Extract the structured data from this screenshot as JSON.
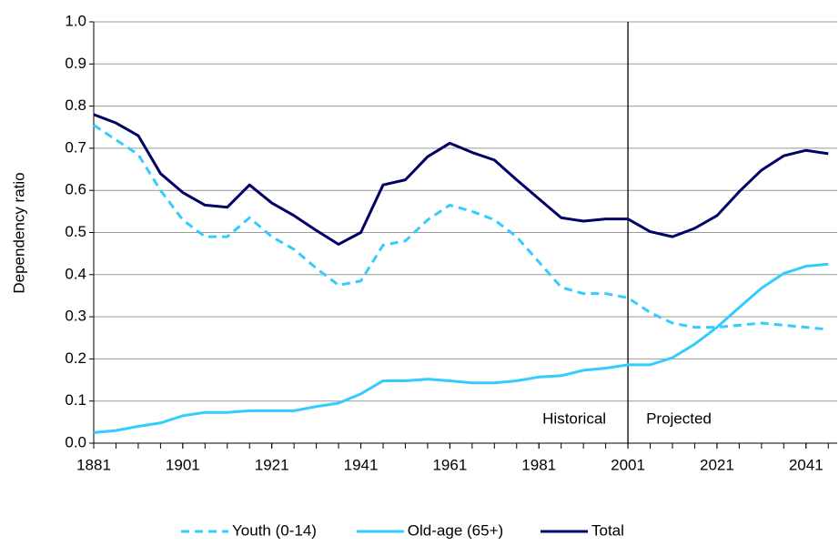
{
  "chart_data": {
    "type": "line",
    "y_label": "Dependency ratio",
    "x": [
      1881,
      1886,
      1891,
      1896,
      1901,
      1906,
      1911,
      1916,
      1921,
      1926,
      1931,
      1936,
      1941,
      1946,
      1951,
      1956,
      1961,
      1966,
      1971,
      1976,
      1981,
      1986,
      1991,
      1996,
      2001,
      2006,
      2011,
      2016,
      2021,
      2026,
      2031,
      2036,
      2041,
      2046
    ],
    "series": [
      {
        "name": "Youth (0-14)",
        "color": "#33ccff",
        "dashed": true,
        "values": [
          0.755,
          0.72,
          0.685,
          0.6,
          0.53,
          0.49,
          0.49,
          0.535,
          0.49,
          0.46,
          0.415,
          0.375,
          0.385,
          0.47,
          0.48,
          0.53,
          0.565,
          0.55,
          0.53,
          0.49,
          0.43,
          0.37,
          0.355,
          0.355,
          0.345,
          0.31,
          0.285,
          0.275,
          0.275,
          0.28,
          0.285,
          0.28,
          0.275,
          0.27
        ]
      },
      {
        "name": "Old-age (65+)",
        "color": "#33ccff",
        "dashed": false,
        "values": [
          0.025,
          0.03,
          0.04,
          0.048,
          0.065,
          0.073,
          0.073,
          0.077,
          0.077,
          0.077,
          0.087,
          0.095,
          0.117,
          0.148,
          0.148,
          0.152,
          0.148,
          0.143,
          0.143,
          0.148,
          0.157,
          0.16,
          0.173,
          0.178,
          0.186,
          0.186,
          0.203,
          0.235,
          0.275,
          0.322,
          0.368,
          0.403,
          0.42,
          0.425
        ]
      },
      {
        "name": "Total",
        "color": "#000066",
        "dashed": false,
        "values": [
          0.78,
          0.76,
          0.73,
          0.64,
          0.595,
          0.565,
          0.56,
          0.613,
          0.57,
          0.54,
          0.505,
          0.472,
          0.5,
          0.613,
          0.625,
          0.68,
          0.712,
          0.69,
          0.672,
          0.625,
          0.58,
          0.535,
          0.527,
          0.532,
          0.532,
          0.502,
          0.49,
          0.51,
          0.54,
          0.597,
          0.648,
          0.682,
          0.695,
          0.687
        ]
      }
    ],
    "xlim": [
      1881,
      2048
    ],
    "xticks": [
      1881,
      1901,
      1921,
      1941,
      1961,
      1981,
      2001,
      2021,
      2041
    ],
    "ylim": [
      0,
      1
    ],
    "yticks": [
      {
        "value": 0,
        "label": "0.0"
      },
      0.1,
      0.2,
      0.3,
      0.4,
      0.5,
      0.6,
      0.7,
      0.8,
      0.9,
      {
        "value": 1,
        "label": "1.0"
      }
    ],
    "grid": true,
    "divider_x": 2001,
    "annotations": [
      "Historical",
      "Projected"
    ],
    "legend": "bottom"
  }
}
